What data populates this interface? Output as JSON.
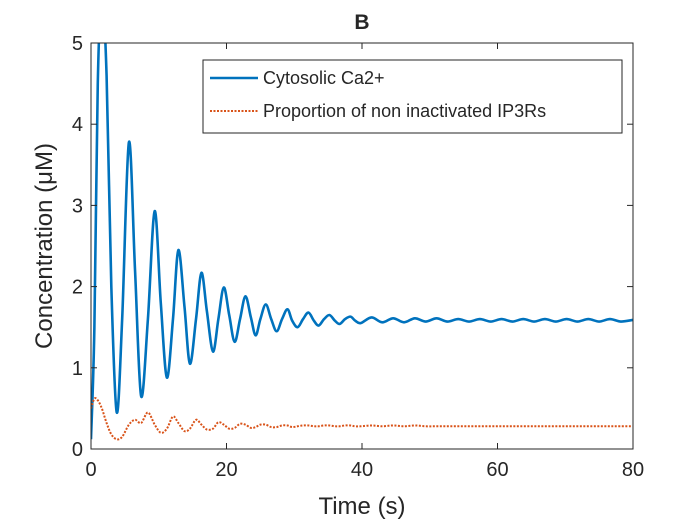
{
  "chart_data": {
    "type": "line",
    "title": "B",
    "xlabel": "Time (s)",
    "ylabel": "Concentration (μM)",
    "x": [
      0,
      0.5,
      1.0,
      1.6,
      2.3,
      3.0,
      3.8,
      4.6,
      5.6,
      6.5,
      7.4,
      8.4,
      9.4,
      10.3,
      11.2,
      12.1,
      12.9,
      13.8,
      14.6,
      15.5,
      16.3,
      17.1,
      18.0,
      18.8,
      19.6,
      20.4,
      21.2,
      22.0,
      22.8,
      23.6,
      24.3,
      25.0,
      25.8,
      26.6,
      27.4,
      28.2,
      29.0,
      29.7,
      30.5,
      31.3,
      32.1,
      32.9,
      33.6,
      34.4,
      35.2,
      36.0,
      36.7,
      37.5,
      38.3,
      39.0,
      39.8,
      41.4,
      43.0,
      44.6,
      46.2,
      47.8,
      49.4,
      51.0,
      52.6,
      54.2,
      55.8,
      57.4,
      59.0,
      60.6,
      62.2,
      63.8,
      65.4,
      67.0,
      68.6,
      70.2,
      71.8,
      73.4,
      75.0,
      76.6,
      78.2,
      80.0
    ],
    "series": [
      {
        "name": "Cytosolic Ca2+",
        "color": "#0072BD",
        "style": "solid",
        "values": [
          0.12,
          1.5,
          4.5,
          5.6,
          4.6,
          2.0,
          0.45,
          1.6,
          3.78,
          2.2,
          0.65,
          1.6,
          2.93,
          1.8,
          0.88,
          1.6,
          2.45,
          1.75,
          1.05,
          1.6,
          2.17,
          1.7,
          1.2,
          1.6,
          1.99,
          1.65,
          1.32,
          1.6,
          1.88,
          1.62,
          1.4,
          1.6,
          1.78,
          1.6,
          1.45,
          1.6,
          1.72,
          1.58,
          1.5,
          1.6,
          1.68,
          1.58,
          1.52,
          1.6,
          1.65,
          1.58,
          1.54,
          1.6,
          1.63,
          1.58,
          1.55,
          1.62,
          1.56,
          1.61,
          1.56,
          1.61,
          1.57,
          1.61,
          1.57,
          1.6,
          1.57,
          1.6,
          1.57,
          1.6,
          1.57,
          1.6,
          1.57,
          1.6,
          1.57,
          1.6,
          1.57,
          1.6,
          1.57,
          1.6,
          1.57,
          1.59
        ]
      },
      {
        "name": "Proportion of non inactivated IP3Rs",
        "color": "#D95319",
        "style": "dotted",
        "values": [
          0.5,
          0.62,
          0.6,
          0.5,
          0.32,
          0.18,
          0.12,
          0.15,
          0.3,
          0.36,
          0.32,
          0.45,
          0.3,
          0.2,
          0.25,
          0.4,
          0.32,
          0.22,
          0.25,
          0.36,
          0.3,
          0.24,
          0.25,
          0.33,
          0.3,
          0.25,
          0.26,
          0.31,
          0.3,
          0.26,
          0.27,
          0.3,
          0.3,
          0.27,
          0.27,
          0.29,
          0.29,
          0.27,
          0.28,
          0.29,
          0.29,
          0.28,
          0.28,
          0.29,
          0.29,
          0.28,
          0.28,
          0.29,
          0.29,
          0.28,
          0.28,
          0.29,
          0.28,
          0.29,
          0.28,
          0.29,
          0.28,
          0.28,
          0.28,
          0.28,
          0.28,
          0.28,
          0.28,
          0.28,
          0.28,
          0.28,
          0.28,
          0.28,
          0.28,
          0.28,
          0.28,
          0.28,
          0.28,
          0.28,
          0.28,
          0.28
        ]
      }
    ],
    "xlim": [
      0,
      80
    ],
    "xticks": [
      0,
      20,
      40,
      60,
      80
    ],
    "ylim": [
      0,
      5
    ],
    "yticks": [
      0,
      1,
      2,
      3,
      4,
      5
    ],
    "grid": false,
    "legend": "upper right"
  }
}
